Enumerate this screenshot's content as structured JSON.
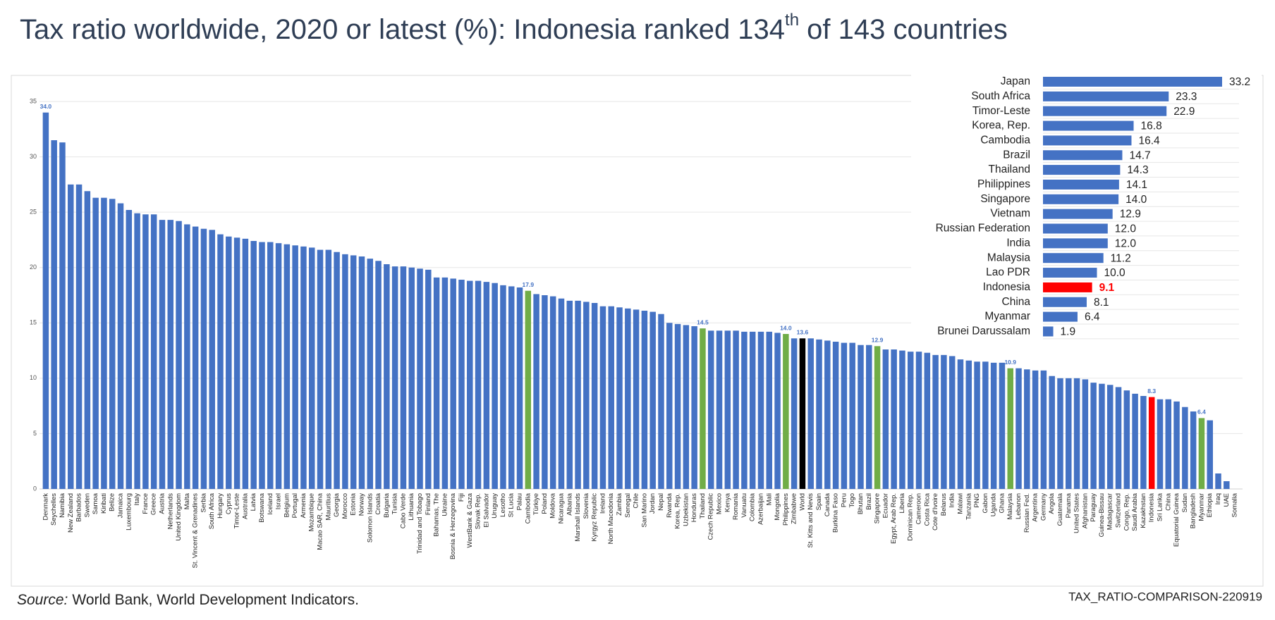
{
  "title_parts": [
    "Tax ratio worldwide, 2020 or latest (%): Indonesia ranked 134",
    "th",
    " of 143 countries"
  ],
  "source": {
    "label": "Source:",
    "text": "World Bank, World Development Indicators."
  },
  "code": "TAX_RATIO-COMPARISON-220919",
  "chart_data": [
    {
      "type": "bar",
      "orientation": "vertical",
      "categories": [
        "Denmark",
        "Seychelles",
        "Namibia",
        "New Zealand",
        "Barbados",
        "Sweden",
        "Samoa",
        "Kiribati",
        "Belize",
        "Jamaica",
        "Luxembourg",
        "Italy",
        "France",
        "Greece",
        "Austria",
        "Netherlands",
        "United Kingdom",
        "Malta",
        "St. Vincent & Grenadines",
        "Serbia",
        "South Africa",
        "Hungary",
        "Cyprus",
        "Timor-Leste",
        "Australia",
        "Latvia",
        "Botswana",
        "Iceland",
        "Israel",
        "Belgium",
        "Portugal",
        "Armenia",
        "Mozambique",
        "Macao SAR, China",
        "Mauritius",
        "Georgia",
        "Morocco",
        "Estonia",
        "Norway",
        "Solomon Islands",
        "Croatia",
        "Bulgaria",
        "Tunisia",
        "Cabo Verde",
        "Lithuania",
        "Trinidad and Tobago",
        "Finland",
        "Bahamas, The",
        "Ukraine",
        "Bosnia & Herzegovina",
        "Fiji",
        "WestBank & Gaza",
        "Slovak Rep.",
        "El Salvador",
        "Uruguay",
        "Lesotho",
        "St Lucia",
        "Palau",
        "Cambodia",
        "Türkiye",
        "Poland",
        "Moldova",
        "Nicaragua",
        "Albania",
        "Marshall Islands",
        "Slovenia",
        "Kyrgyz Republic",
        "Ireland",
        "North Macedonia",
        "Zambia",
        "Senegal",
        "Chile",
        "San Marino",
        "Jordan",
        "Nepal",
        "Rwanda",
        "Korea, Rep.",
        "Uzbekistan",
        "Honduras",
        "Thailand",
        "Czech Republic",
        "Mexico",
        "Kenya",
        "Romania",
        "Vanuatu",
        "Colombia",
        "Azerbaijan",
        "Mali",
        "Mongolia",
        "Philippines",
        "Zimbabwe",
        "World",
        "St. Kitts and Nevis",
        "Spain",
        "Canada",
        "Burkina Faso",
        "Peru",
        "Togo",
        "Bhutan",
        "Brazil",
        "Singapore",
        "Ecuador",
        "Egypt, Arab Rep.",
        "Liberia",
        "Dominican Rep.",
        "Cameroon",
        "Costa Rica",
        "Cote d'Ivoire",
        "Belarus",
        "India",
        "Malawi",
        "Tanzania",
        "PNG",
        "Gabon",
        "Uganda",
        "Ghana",
        "Malaysia",
        "Lebanon",
        "Russian Fed.",
        "Argentina",
        "Germany",
        "Angola",
        "Guatemala",
        "Panama",
        "United States",
        "Afghanistan",
        "Paraguay",
        "Guinea-Bissau",
        "Madagascar",
        "Switzerland",
        "Congo, Rep.",
        "Saudi Arabia",
        "Kazakhstan",
        "Indonesia",
        "Sri Lanka",
        "China",
        "Equatorial Guinea",
        "Sudan",
        "Bangladesh",
        "Myanmar",
        "Ethiopia",
        "Iraq",
        "UAE",
        "Somalia"
      ],
      "values": [
        34,
        31.5,
        31.3,
        27.5,
        27.5,
        26.9,
        26.3,
        26.3,
        26.2,
        25.8,
        25.2,
        24.9,
        24.8,
        24.8,
        24.3,
        24.3,
        24.2,
        23.9,
        23.7,
        23.5,
        23.4,
        23,
        22.8,
        22.7,
        22.6,
        22.4,
        22.3,
        22.3,
        22.2,
        22.1,
        22,
        21.9,
        21.8,
        21.6,
        21.6,
        21.4,
        21.2,
        21.1,
        21,
        20.8,
        20.6,
        20.3,
        20.1,
        20.1,
        20,
        19.9,
        19.8,
        19.1,
        19.1,
        19,
        18.9,
        18.8,
        18.8,
        18.7,
        18.6,
        18.4,
        18.3,
        18.2,
        17.9,
        17.6,
        17.5,
        17.4,
        17.2,
        17,
        17,
        16.9,
        16.8,
        16.5,
        16.5,
        16.4,
        16.3,
        16.2,
        16.1,
        16,
        15.8,
        15,
        14.9,
        14.8,
        14.7,
        14.5,
        14.3,
        14.3,
        14.3,
        14.3,
        14.2,
        14.2,
        14.2,
        14.2,
        14.1,
        14,
        13.6,
        13.6,
        13.6,
        13.5,
        13.4,
        13.3,
        13.2,
        13.2,
        13,
        13,
        12.9,
        12.6,
        12.6,
        12.5,
        12.4,
        12.4,
        12.3,
        12.1,
        12.1,
        12,
        11.7,
        11.6,
        11.5,
        11.5,
        11.4,
        11.4,
        10.9,
        10.9,
        10.8,
        10.7,
        10.7,
        10.2,
        10,
        10,
        10,
        9.9,
        9.6,
        9.5,
        9.4,
        9.2,
        8.9,
        8.6,
        8.4,
        8.3,
        8.1,
        8.1,
        7.9,
        7.4,
        7,
        6.4,
        6.2,
        1.4,
        0.7,
        0
      ],
      "value_labels": [
        "34.0",
        null,
        null,
        null,
        null,
        null,
        null,
        null,
        null,
        null,
        null,
        null,
        null,
        null,
        null,
        null,
        null,
        null,
        null,
        null,
        null,
        null,
        null,
        null,
        null,
        null,
        null,
        null,
        null,
        null,
        null,
        null,
        null,
        null,
        null,
        null,
        null,
        null,
        null,
        null,
        null,
        null,
        null,
        null,
        null,
        null,
        null,
        null,
        null,
        null,
        null,
        null,
        null,
        null,
        null,
        null,
        null,
        null,
        "17.9",
        null,
        null,
        null,
        null,
        null,
        null,
        null,
        null,
        null,
        null,
        null,
        null,
        null,
        null,
        null,
        null,
        null,
        null,
        null,
        null,
        "14.5",
        null,
        null,
        null,
        null,
        null,
        null,
        null,
        null,
        null,
        "14.0",
        null,
        "13.6",
        null,
        null,
        null,
        null,
        null,
        null,
        null,
        null,
        "12.9",
        null,
        null,
        null,
        null,
        null,
        null,
        null,
        null,
        null,
        null,
        null,
        null,
        null,
        null,
        null,
        "10.9",
        null,
        null,
        null,
        null,
        null,
        null,
        null,
        null,
        null,
        null,
        null,
        null,
        null,
        null,
        null,
        null,
        "8.3",
        null,
        null,
        null,
        null,
        null,
        "6.4",
        null,
        null,
        null,
        null
      ],
      "colors": [
        "#4472c4",
        "#4472c4",
        "#4472c4",
        "#4472c4",
        "#4472c4",
        "#4472c4",
        "#4472c4",
        "#4472c4",
        "#4472c4",
        "#4472c4",
        "#4472c4",
        "#4472c4",
        "#4472c4",
        "#4472c4",
        "#4472c4",
        "#4472c4",
        "#4472c4",
        "#4472c4",
        "#4472c4",
        "#4472c4",
        "#4472c4",
        "#4472c4",
        "#4472c4",
        "#4472c4",
        "#4472c4",
        "#4472c4",
        "#4472c4",
        "#4472c4",
        "#4472c4",
        "#4472c4",
        "#4472c4",
        "#4472c4",
        "#4472c4",
        "#4472c4",
        "#4472c4",
        "#4472c4",
        "#4472c4",
        "#4472c4",
        "#4472c4",
        "#4472c4",
        "#4472c4",
        "#4472c4",
        "#4472c4",
        "#4472c4",
        "#4472c4",
        "#4472c4",
        "#4472c4",
        "#4472c4",
        "#4472c4",
        "#4472c4",
        "#4472c4",
        "#4472c4",
        "#4472c4",
        "#4472c4",
        "#4472c4",
        "#4472c4",
        "#4472c4",
        "#4472c4",
        "#70ad47",
        "#4472c4",
        "#4472c4",
        "#4472c4",
        "#4472c4",
        "#4472c4",
        "#4472c4",
        "#4472c4",
        "#4472c4",
        "#4472c4",
        "#4472c4",
        "#4472c4",
        "#4472c4",
        "#4472c4",
        "#4472c4",
        "#4472c4",
        "#4472c4",
        "#4472c4",
        "#4472c4",
        "#4472c4",
        "#4472c4",
        "#70ad47",
        "#4472c4",
        "#4472c4",
        "#4472c4",
        "#4472c4",
        "#4472c4",
        "#4472c4",
        "#4472c4",
        "#4472c4",
        "#4472c4",
        "#70ad47",
        "#4472c4",
        "#000000",
        "#4472c4",
        "#4472c4",
        "#4472c4",
        "#4472c4",
        "#4472c4",
        "#4472c4",
        "#4472c4",
        "#4472c4",
        "#70ad47",
        "#4472c4",
        "#4472c4",
        "#4472c4",
        "#4472c4",
        "#4472c4",
        "#4472c4",
        "#4472c4",
        "#4472c4",
        "#4472c4",
        "#4472c4",
        "#4472c4",
        "#4472c4",
        "#4472c4",
        "#4472c4",
        "#4472c4",
        "#70ad47",
        "#4472c4",
        "#4472c4",
        "#4472c4",
        "#4472c4",
        "#4472c4",
        "#4472c4",
        "#4472c4",
        "#4472c4",
        "#4472c4",
        "#4472c4",
        "#4472c4",
        "#4472c4",
        "#4472c4",
        "#4472c4",
        "#4472c4",
        "#4472c4",
        "#ff0000",
        "#4472c4",
        "#4472c4",
        "#4472c4",
        "#4472c4",
        "#4472c4",
        "#70ad47",
        "#4472c4",
        "#4472c4",
        "#4472c4",
        "#4472c4"
      ],
      "value_label_color": "#4472c4",
      "ylim": [
        0,
        35
      ],
      "yticks": [
        0,
        5,
        10,
        15,
        20,
        25,
        30,
        35
      ],
      "grid": true
    },
    {
      "type": "bar",
      "orientation": "horizontal",
      "categories": [
        "Japan",
        "South Africa",
        "Timor-Leste",
        "Korea, Rep.",
        "Cambodia",
        "Brazil",
        "Thailand",
        "Philippines",
        "Singapore",
        "Vietnam",
        "Russian Federation",
        "India",
        "Malaysia",
        "Lao PDR",
        "Indonesia",
        "China",
        "Myanmar",
        "Brunei Darussalam"
      ],
      "values": [
        33.2,
        23.3,
        22.9,
        16.8,
        16.4,
        14.7,
        14.3,
        14.1,
        14,
        12.9,
        12,
        12,
        11.2,
        10,
        9.1,
        8.1,
        6.4,
        1.9
      ],
      "value_labels": [
        "33.2",
        "23.3",
        "22.9",
        "16.8",
        "16.4",
        "14.7",
        "14.3",
        "14.1",
        "14.0",
        "12.9",
        "12.0",
        "12.0",
        "11.2",
        "10.0",
        "9.1",
        "8.1",
        "6.4",
        "1.9"
      ],
      "colors": [
        "#4472c4",
        "#4472c4",
        "#4472c4",
        "#4472c4",
        "#4472c4",
        "#4472c4",
        "#4472c4",
        "#4472c4",
        "#4472c4",
        "#4472c4",
        "#4472c4",
        "#4472c4",
        "#4472c4",
        "#4472c4",
        "#ff0000",
        "#4472c4",
        "#4472c4",
        "#4472c4"
      ]
    }
  ]
}
